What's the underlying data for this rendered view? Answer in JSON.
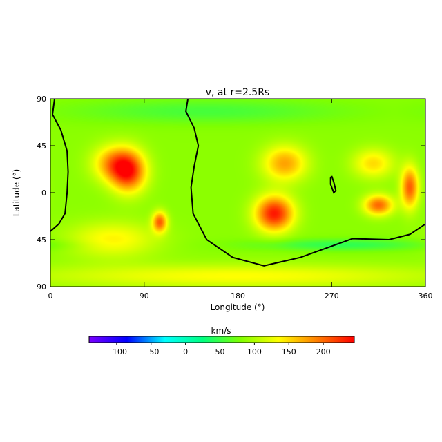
{
  "chart_data": {
    "type": "heatmap",
    "title": "v, at r=2.5Rs",
    "xlabel": "Longitude (°)",
    "ylabel": "Latitude (°)",
    "xlim": [
      0,
      360
    ],
    "ylim": [
      -90,
      90
    ],
    "xticks": [
      0,
      90,
      180,
      270,
      360
    ],
    "yticks": [
      -90,
      -45,
      0,
      45,
      90
    ],
    "grid": false,
    "colorbar": {
      "label": "km/s",
      "range": [
        -140,
        245
      ],
      "ticks": [
        -100,
        -50,
        0,
        50,
        100,
        150,
        200
      ],
      "placement": "bottom",
      "colormap": [
        "#7a00ff",
        "#0000ff",
        "#00ffff",
        "#00ff80",
        "#80ff00",
        "#ffff00",
        "#ff8000",
        "#ff0000"
      ]
    },
    "background_value": 85,
    "blobs": [
      {
        "lon": 75,
        "lat": 20,
        "value": 220,
        "spread_lon": 12,
        "spread_lat": 14
      },
      {
        "lon": 60,
        "lat": 28,
        "value": 170,
        "spread_lon": 14,
        "spread_lat": 12
      },
      {
        "lon": 105,
        "lat": -28,
        "value": 200,
        "spread_lon": 5,
        "spread_lat": 7
      },
      {
        "lon": 215,
        "lat": -20,
        "value": 235,
        "spread_lon": 13,
        "spread_lat": 12
      },
      {
        "lon": 225,
        "lat": 28,
        "value": 175,
        "spread_lon": 15,
        "spread_lat": 12
      },
      {
        "lon": 315,
        "lat": -12,
        "value": 200,
        "spread_lon": 10,
        "spread_lat": 7
      },
      {
        "lon": 345,
        "lat": 5,
        "value": 205,
        "spread_lon": 6,
        "spread_lat": 14
      },
      {
        "lon": 310,
        "lat": 28,
        "value": 150,
        "spread_lon": 14,
        "spread_lat": 10
      },
      {
        "lon": 60,
        "lat": -45,
        "value": 140,
        "spread_lon": 30,
        "spread_lat": 12
      },
      {
        "lon": 150,
        "lat": 78,
        "value": 55,
        "spread_lon": 90,
        "spread_lat": 8
      },
      {
        "lon": 280,
        "lat": -50,
        "value": 45,
        "spread_lon": 60,
        "spread_lat": 4
      },
      {
        "lon": 180,
        "lat": -80,
        "value": 135,
        "spread_lon": 140,
        "spread_lat": 8
      }
    ],
    "neutral_line": [
      [
        4,
        90
      ],
      [
        2,
        75
      ],
      [
        10,
        60
      ],
      [
        16,
        40
      ],
      [
        17,
        20
      ],
      [
        16,
        0
      ],
      [
        14,
        -20
      ],
      [
        8,
        -30
      ],
      [
        0,
        -37
      ]
    ],
    "neutral_line_2": [
      [
        132,
        90
      ],
      [
        130,
        78
      ],
      [
        138,
        62
      ],
      [
        142,
        45
      ],
      [
        138,
        25
      ],
      [
        135,
        5
      ],
      [
        137,
        -20
      ],
      [
        150,
        -45
      ],
      [
        175,
        -62
      ],
      [
        205,
        -70
      ],
      [
        240,
        -62
      ],
      [
        290,
        -44
      ],
      [
        325,
        -45
      ],
      [
        345,
        -40
      ],
      [
        360,
        -30
      ]
    ],
    "neutral_loop": [
      [
        270,
        16
      ],
      [
        272,
        10
      ],
      [
        274,
        2
      ],
      [
        272,
        0
      ],
      [
        269,
        8
      ],
      [
        269,
        14
      ],
      [
        270,
        16
      ]
    ]
  }
}
